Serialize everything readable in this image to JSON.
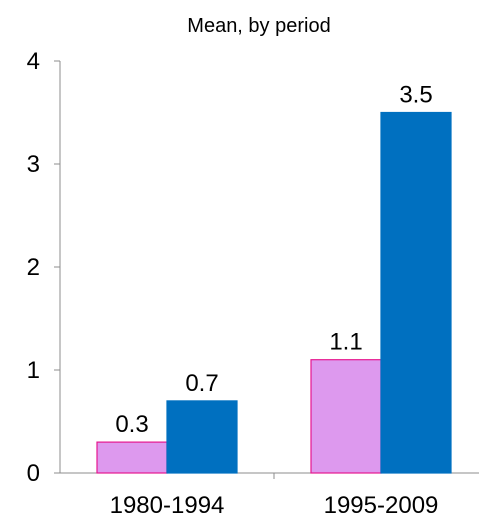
{
  "chart_data": {
    "type": "bar",
    "title": "Mean, by period",
    "xlabel": "",
    "ylabel": "",
    "categories": [
      "1980-1994",
      "1995-2009"
    ],
    "series": [
      {
        "values": [
          0.3,
          1.1
        ],
        "color": "#dd99ee",
        "stroke": "#e6178f"
      },
      {
        "values": [
          0.7,
          3.5
        ],
        "color": "#0070c0",
        "stroke": "#0070c0"
      }
    ],
    "data_labels": [
      [
        "0.3",
        "1.1"
      ],
      [
        "0.7",
        "3.5"
      ]
    ],
    "ylim": [
      0,
      4
    ],
    "yticks": [
      "0",
      "1",
      "2",
      "3",
      "4"
    ],
    "grid": false,
    "legend": "none"
  }
}
